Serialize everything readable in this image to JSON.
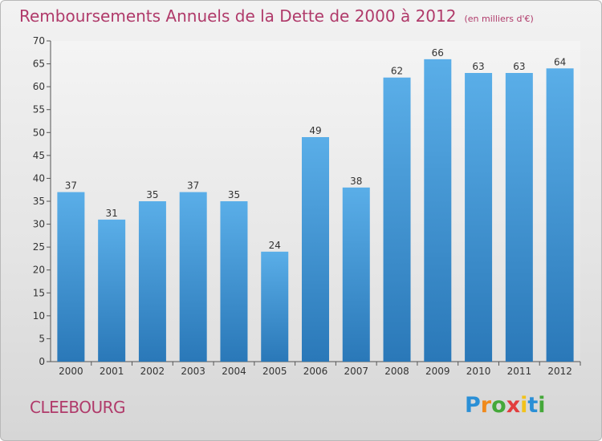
{
  "header": {
    "title": "Remboursements Annuels de la Dette de 2000 à 2012",
    "unit": "(en milliers d'€)"
  },
  "footer": {
    "commune": "CLEEBOURG",
    "logo_text": "Proxiti"
  },
  "colors": {
    "title": "#b03a6a",
    "bar_top": "#5aaee8",
    "bar_bottom": "#2a78b8"
  },
  "chart_data": {
    "type": "bar",
    "title": "Remboursements Annuels de la Dette de 2000 à 2012",
    "subtitle": "(en milliers d'€)",
    "categories": [
      "2000",
      "2001",
      "2002",
      "2003",
      "2004",
      "2005",
      "2006",
      "2007",
      "2008",
      "2009",
      "2010",
      "2011",
      "2012"
    ],
    "values": [
      37,
      31,
      35,
      37,
      35,
      24,
      49,
      38,
      62,
      66,
      63,
      63,
      64
    ],
    "ylim": [
      0,
      70
    ],
    "yticks": [
      0,
      5,
      10,
      15,
      20,
      25,
      30,
      35,
      40,
      45,
      50,
      55,
      60,
      65,
      70
    ],
    "grid": false,
    "data_labels": true
  }
}
